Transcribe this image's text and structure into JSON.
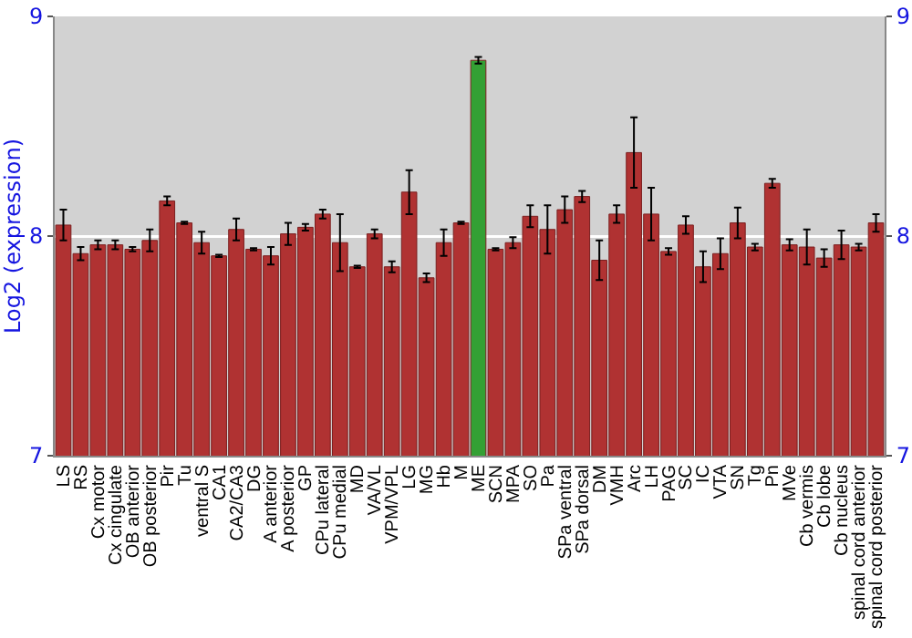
{
  "chart_data": {
    "type": "bar",
    "ylabel": "Log2 (expression)",
    "categories": [
      "LS",
      "RS",
      "Cx motor",
      "Cx cingulate",
      "OB anterior",
      "OB posterior",
      "Pir",
      "Tu",
      "ventral S",
      "CA1",
      "CA2/CA3",
      "DG",
      "A anterior",
      "A posterior",
      "GP",
      "CPu lateral",
      "CPu medial",
      "MD",
      "VA/VL",
      "VPM/VPL",
      "LG",
      "MG",
      "Hb",
      "M",
      "ME",
      "SCN",
      "MPA",
      "SO",
      "Pa",
      "SPa ventral",
      "SPa dorsal",
      "DM",
      "VMH",
      "Arc",
      "LH",
      "PAG",
      "SC",
      "IC",
      "VTA",
      "SN",
      "Tg",
      "Pn",
      "MVe",
      "Cb vermis",
      "Cb lobe",
      "Cb nucleus",
      "spinal cord anterior",
      "spinal cord posterior"
    ],
    "values": [
      8.05,
      7.92,
      7.96,
      7.96,
      7.94,
      7.98,
      8.16,
      8.06,
      7.97,
      7.91,
      8.03,
      7.94,
      7.91,
      8.01,
      8.04,
      8.1,
      7.97,
      7.86,
      8.01,
      7.86,
      8.2,
      7.81,
      7.97,
      8.06,
      8.8,
      7.94,
      7.97,
      8.09,
      8.03,
      8.12,
      8.18,
      7.89,
      8.1,
      8.38,
      8.1,
      7.93,
      8.05,
      7.86,
      7.92,
      8.06,
      7.95,
      8.24,
      7.96,
      7.95,
      7.9,
      7.96,
      7.95,
      8.06
    ],
    "errors": [
      0.07,
      0.03,
      0.02,
      0.02,
      0.01,
      0.05,
      0.02,
      0.005,
      0.05,
      0.005,
      0.05,
      0.005,
      0.04,
      0.05,
      0.015,
      0.02,
      0.13,
      0.005,
      0.02,
      0.025,
      0.1,
      0.02,
      0.06,
      0.005,
      0.015,
      0.005,
      0.025,
      0.05,
      0.11,
      0.06,
      0.025,
      0.09,
      0.04,
      0.16,
      0.12,
      0.015,
      0.04,
      0.07,
      0.07,
      0.07,
      0.015,
      0.02,
      0.025,
      0.08,
      0.04,
      0.065,
      0.015,
      0.04
    ],
    "colors": [
      "#b03232",
      "#b03232",
      "#b03232",
      "#b03232",
      "#b03232",
      "#b03232",
      "#b03232",
      "#b03232",
      "#b03232",
      "#b03232",
      "#b03232",
      "#b03232",
      "#b03232",
      "#b03232",
      "#b03232",
      "#b03232",
      "#b03232",
      "#b03232",
      "#b03232",
      "#b03232",
      "#b03232",
      "#b03232",
      "#b03232",
      "#b03232",
      "#34a034",
      "#b03232",
      "#b03232",
      "#b03232",
      "#b03232",
      "#b03232",
      "#b03232",
      "#b03232",
      "#b03232",
      "#b03232",
      "#b03232",
      "#b03232",
      "#b03232",
      "#b03232",
      "#b03232",
      "#b03232",
      "#b03232",
      "#b03232",
      "#b03232",
      "#b03232",
      "#b03232",
      "#b03232",
      "#b03232",
      "#b03232"
    ],
    "ylim": [
      7,
      9
    ],
    "yticks": [
      7,
      8,
      9
    ],
    "y2lim": [
      7,
      9
    ],
    "y2ticks": [
      7,
      8,
      9
    ],
    "grid": "y"
  }
}
